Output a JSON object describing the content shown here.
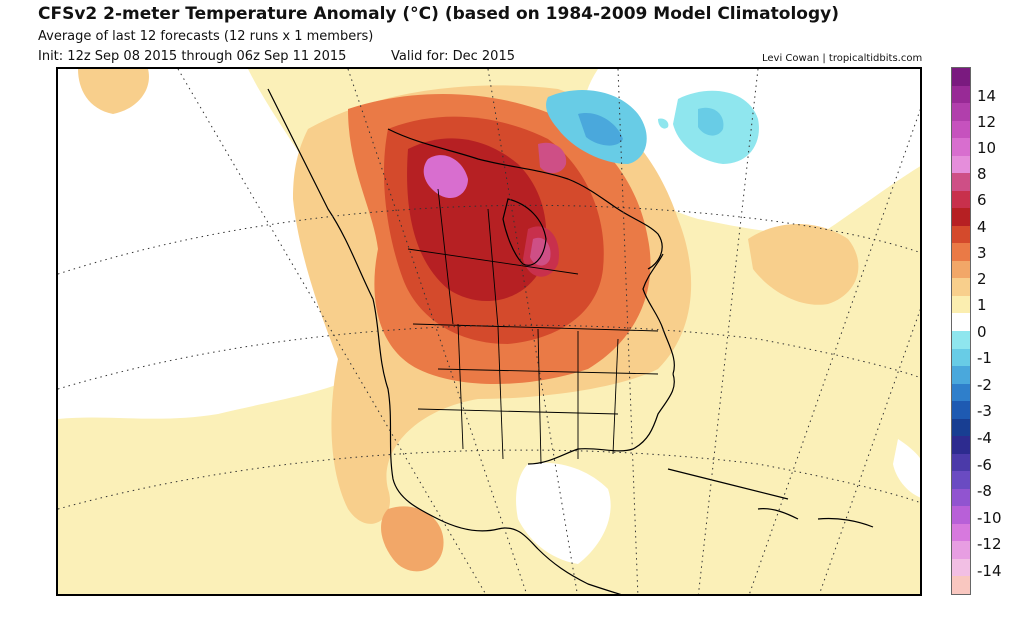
{
  "header": {
    "title": "CFSv2 2-meter Temperature Anomaly (°C) (based on 1984-2009 Model Climatology)",
    "subtitle": "Average of last 12 forecasts (12 runs x 1 members)",
    "init": "Init: 12z Sep 08 2015 through 06z Sep 11 2015",
    "valid": "Valid for: Dec 2015",
    "credit": "Levi Cowan | tropicaltidbits.com"
  },
  "map": {
    "region": "North America",
    "variable": "2-meter temperature anomaly",
    "units": "°C"
  },
  "legend": {
    "labels": [
      "14",
      "12",
      "10",
      "8",
      "6",
      "4",
      "3",
      "2",
      "1",
      "0",
      "-1",
      "-2",
      "-3",
      "-4",
      "-6",
      "-8",
      "-10",
      "-12",
      "-14"
    ],
    "colors": [
      "#7a1a7f",
      "#982a96",
      "#b13fac",
      "#c652be",
      "#d86ecf",
      "#e58edb",
      "#ce4f86",
      "#c8304c",
      "#b62023",
      "#d44a2c",
      "#ea7a46",
      "#f2a768",
      "#f8cf8c",
      "#fbeeb0",
      "#ffffff",
      "#8fe6ee",
      "#68cce6",
      "#4aa8dc",
      "#2f7fcb",
      "#1e5ab2",
      "#183e92",
      "#2d2b8f",
      "#4b3aa9",
      "#6a4bc2",
      "#9154d0",
      "#b860d8",
      "#d779de",
      "#e79ee2",
      "#f2bfe4",
      "#f9c7c0"
    ]
  }
}
